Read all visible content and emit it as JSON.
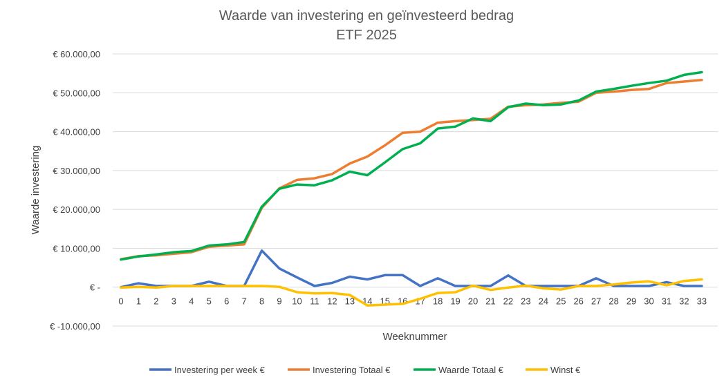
{
  "chart_data": {
    "type": "line",
    "title": "Waarde van investering en geïnvesteerd bedrag",
    "subtitle": "ETF 2025",
    "xlabel": "Weeknummer",
    "ylabel": "Waarde investering",
    "ylim": [
      -10000,
      60000
    ],
    "yticks": [
      60000,
      50000,
      40000,
      30000,
      20000,
      10000,
      0,
      -10000
    ],
    "ytick_labels": [
      "€ 60.000,00",
      "€ 50.000,00",
      "€ 40.000,00",
      "€ 30.000,00",
      "€ 20.000,00",
      "€ 10.000,00",
      "€ -",
      "€ -10.000,00"
    ],
    "x": [
      0,
      1,
      2,
      3,
      4,
      5,
      6,
      7,
      8,
      9,
      10,
      11,
      12,
      13,
      14,
      15,
      16,
      17,
      18,
      19,
      20,
      21,
      22,
      23,
      24,
      25,
      26,
      27,
      28,
      29,
      30,
      31,
      32,
      33
    ],
    "x_labels": [
      "0",
      "1",
      "2",
      "3",
      "4",
      "5",
      "6",
      "7",
      "8",
      "9",
      "10",
      "11",
      "12",
      "13",
      "14",
      "15",
      "16",
      "17",
      "18",
      "19",
      "20",
      "21",
      "22",
      "23",
      "24",
      "25",
      "26",
      "27",
      "28",
      "29",
      "30",
      "31",
      "32",
      "33"
    ],
    "grid": true,
    "legend_position": "bottom",
    "series": [
      {
        "name": "Investering per week €",
        "color": "#4472C4",
        "values": [
          0,
          1000,
          300,
          300,
          300,
          1400,
          300,
          300,
          9400,
          4800,
          2500,
          300,
          1100,
          2700,
          2000,
          3100,
          3100,
          300,
          2300,
          300,
          300,
          300,
          3000,
          300,
          300,
          300,
          300,
          2300,
          300,
          300,
          300,
          1300,
          300,
          300
        ]
      },
      {
        "name": "Investering Totaal €",
        "color": "#ED7D31",
        "values": [
          7200,
          8000,
          8200,
          8600,
          9000,
          10400,
          10700,
          11000,
          20400,
          25400,
          27600,
          28000,
          29100,
          31800,
          33600,
          36500,
          39700,
          40000,
          42300,
          42700,
          43000,
          43300,
          46400,
          46800,
          47000,
          47400,
          47700,
          50000,
          50300,
          50700,
          51000,
          52500,
          52900,
          53300
        ]
      },
      {
        "name": "Waarde Totaal €",
        "color": "#00B050",
        "values": [
          7100,
          7900,
          8400,
          9000,
          9300,
          10700,
          11000,
          11600,
          20700,
          25300,
          26400,
          26200,
          27500,
          29700,
          28800,
          32100,
          35500,
          37000,
          40800,
          41300,
          43400,
          42700,
          46300,
          47200,
          46800,
          47000,
          48000,
          50300,
          51000,
          51800,
          52500,
          53100,
          54600,
          55300
        ]
      },
      {
        "name": "Winst €",
        "color": "#FFC000",
        "values": [
          -100,
          100,
          -100,
          300,
          300,
          300,
          300,
          300,
          300,
          100,
          -1300,
          -1600,
          -1500,
          -2000,
          -4700,
          -4500,
          -4300,
          -3000,
          -1500,
          -1300,
          400,
          -700,
          -100,
          400,
          -300,
          -600,
          300,
          300,
          700,
          1200,
          1500,
          500,
          1600,
          2000
        ]
      }
    ]
  }
}
